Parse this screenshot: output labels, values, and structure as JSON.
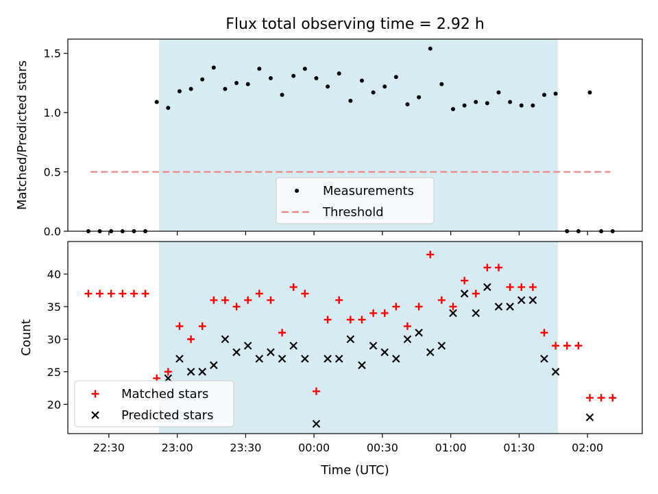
{
  "chart_data": [
    {
      "type": "scatter",
      "title": "Flux total observing time = 2.92 h",
      "xlabel": "",
      "ylabel": "Matched/Predicted stars",
      "ylim": [
        0,
        1.62
      ],
      "yticks": [
        0.0,
        0.5,
        1.0,
        1.5
      ],
      "ytick_labels": [
        "0.0",
        "0.5",
        "1.0",
        "1.5"
      ],
      "shaded_span": {
        "start": "22:52",
        "end": "01:47",
        "color": "#add8e6"
      },
      "threshold": {
        "name": "Threshold",
        "value": 0.5,
        "x_start": "22:22",
        "x_end": "02:10",
        "color": "#f08080"
      },
      "series": [
        {
          "name": "Measurements",
          "marker": "dot",
          "color": "#000000",
          "points": [
            [
              "22:21",
              0.0
            ],
            [
              "22:26",
              0.0
            ],
            [
              "22:31",
              0.0
            ],
            [
              "22:36",
              0.0
            ],
            [
              "22:41",
              0.0
            ],
            [
              "22:46",
              0.0
            ],
            [
              "22:51",
              1.09
            ],
            [
              "22:56",
              1.04
            ],
            [
              "23:01",
              1.18
            ],
            [
              "23:06",
              1.2
            ],
            [
              "23:11",
              1.28
            ],
            [
              "23:16",
              1.38
            ],
            [
              "23:21",
              1.2
            ],
            [
              "23:26",
              1.25
            ],
            [
              "23:31",
              1.24
            ],
            [
              "23:36",
              1.37
            ],
            [
              "23:41",
              1.29
            ],
            [
              "23:46",
              1.15
            ],
            [
              "23:51",
              1.31
            ],
            [
              "23:56",
              1.37
            ],
            [
              "00:01",
              1.29
            ],
            [
              "00:06",
              1.22
            ],
            [
              "00:11",
              1.33
            ],
            [
              "00:16",
              1.1
            ],
            [
              "00:21",
              1.27
            ],
            [
              "00:26",
              1.17
            ],
            [
              "00:31",
              1.22
            ],
            [
              "00:36",
              1.3
            ],
            [
              "00:41",
              1.07
            ],
            [
              "00:46",
              1.13
            ],
            [
              "00:51",
              1.54
            ],
            [
              "00:56",
              1.24
            ],
            [
              "01:01",
              1.03
            ],
            [
              "01:06",
              1.06
            ],
            [
              "01:11",
              1.09
            ],
            [
              "01:16",
              1.08
            ],
            [
              "01:21",
              1.17
            ],
            [
              "01:26",
              1.09
            ],
            [
              "01:31",
              1.06
            ],
            [
              "01:36",
              1.06
            ],
            [
              "01:41",
              1.15
            ],
            [
              "01:46",
              1.16
            ],
            [
              "01:51",
              0.0
            ],
            [
              "01:56",
              0.0
            ],
            [
              "02:01",
              1.17
            ],
            [
              "02:06",
              0.0
            ],
            [
              "02:11",
              0.0
            ]
          ]
        }
      ],
      "legend": {
        "placement": "lower-center",
        "entries": [
          "Measurements",
          "Threshold"
        ]
      }
    },
    {
      "type": "scatter",
      "xlabel": "Time (UTC)",
      "ylabel": "Count",
      "ylim": [
        15.5,
        45
      ],
      "yticks": [
        20,
        25,
        30,
        35,
        40
      ],
      "ytick_labels": [
        "20",
        "25",
        "30",
        "35",
        "40"
      ],
      "xlim": [
        "22:12",
        "02:24"
      ],
      "xticks": [
        "22:30",
        "23:00",
        "23:30",
        "00:00",
        "00:30",
        "01:00",
        "01:30",
        "02:00"
      ],
      "xtick_labels": [
        "22:30",
        "23:00",
        "23:30",
        "00:00",
        "00:30",
        "01:00",
        "01:30",
        "02:00"
      ],
      "shaded_span": {
        "start": "22:52",
        "end": "01:47",
        "color": "#add8e6"
      },
      "series": [
        {
          "name": "Matched stars",
          "marker": "plus",
          "color": "#ff0000",
          "points": [
            [
              "22:21",
              37
            ],
            [
              "22:26",
              37
            ],
            [
              "22:31",
              37
            ],
            [
              "22:36",
              37
            ],
            [
              "22:41",
              37
            ],
            [
              "22:46",
              37
            ],
            [
              "22:51",
              24
            ],
            [
              "22:56",
              25
            ],
            [
              "23:01",
              32
            ],
            [
              "23:06",
              30
            ],
            [
              "23:11",
              32
            ],
            [
              "23:16",
              36
            ],
            [
              "23:21",
              36
            ],
            [
              "23:26",
              35
            ],
            [
              "23:31",
              36
            ],
            [
              "23:36",
              37
            ],
            [
              "23:41",
              36
            ],
            [
              "23:46",
              31
            ],
            [
              "23:51",
              38
            ],
            [
              "23:56",
              37
            ],
            [
              "00:01",
              22
            ],
            [
              "00:06",
              33
            ],
            [
              "00:11",
              36
            ],
            [
              "00:16",
              33
            ],
            [
              "00:21",
              33
            ],
            [
              "00:26",
              34
            ],
            [
              "00:31",
              34
            ],
            [
              "00:36",
              35
            ],
            [
              "00:41",
              32
            ],
            [
              "00:46",
              35
            ],
            [
              "00:51",
              43
            ],
            [
              "00:56",
              36
            ],
            [
              "01:01",
              35
            ],
            [
              "01:06",
              39
            ],
            [
              "01:11",
              37
            ],
            [
              "01:16",
              41
            ],
            [
              "01:21",
              41
            ],
            [
              "01:26",
              38
            ],
            [
              "01:31",
              38
            ],
            [
              "01:36",
              38
            ],
            [
              "01:41",
              31
            ],
            [
              "01:46",
              29
            ],
            [
              "01:51",
              29
            ],
            [
              "01:56",
              29
            ],
            [
              "02:01",
              21
            ],
            [
              "02:06",
              21
            ],
            [
              "02:11",
              21
            ]
          ]
        },
        {
          "name": "Predicted stars",
          "marker": "x",
          "color": "#000000",
          "points": [
            [
              "22:56",
              24
            ],
            [
              "23:01",
              27
            ],
            [
              "23:06",
              25
            ],
            [
              "23:11",
              25
            ],
            [
              "23:16",
              26
            ],
            [
              "23:21",
              30
            ],
            [
              "23:26",
              28
            ],
            [
              "23:31",
              29
            ],
            [
              "23:36",
              27
            ],
            [
              "23:41",
              28
            ],
            [
              "23:46",
              27
            ],
            [
              "23:51",
              29
            ],
            [
              "23:56",
              27
            ],
            [
              "00:01",
              17
            ],
            [
              "00:06",
              27
            ],
            [
              "00:11",
              27
            ],
            [
              "00:16",
              30
            ],
            [
              "00:21",
              26
            ],
            [
              "00:26",
              29
            ],
            [
              "00:31",
              28
            ],
            [
              "00:36",
              27
            ],
            [
              "00:41",
              30
            ],
            [
              "00:46",
              31
            ],
            [
              "00:51",
              28
            ],
            [
              "00:56",
              29
            ],
            [
              "01:01",
              34
            ],
            [
              "01:06",
              37
            ],
            [
              "01:11",
              34
            ],
            [
              "01:16",
              38
            ],
            [
              "01:21",
              35
            ],
            [
              "01:26",
              35
            ],
            [
              "01:31",
              36
            ],
            [
              "01:36",
              36
            ],
            [
              "01:41",
              27
            ],
            [
              "01:46",
              25
            ],
            [
              "02:01",
              18
            ]
          ]
        }
      ],
      "legend": {
        "placement": "lower-left",
        "entries": [
          "Matched stars",
          "Predicted stars"
        ]
      }
    }
  ]
}
